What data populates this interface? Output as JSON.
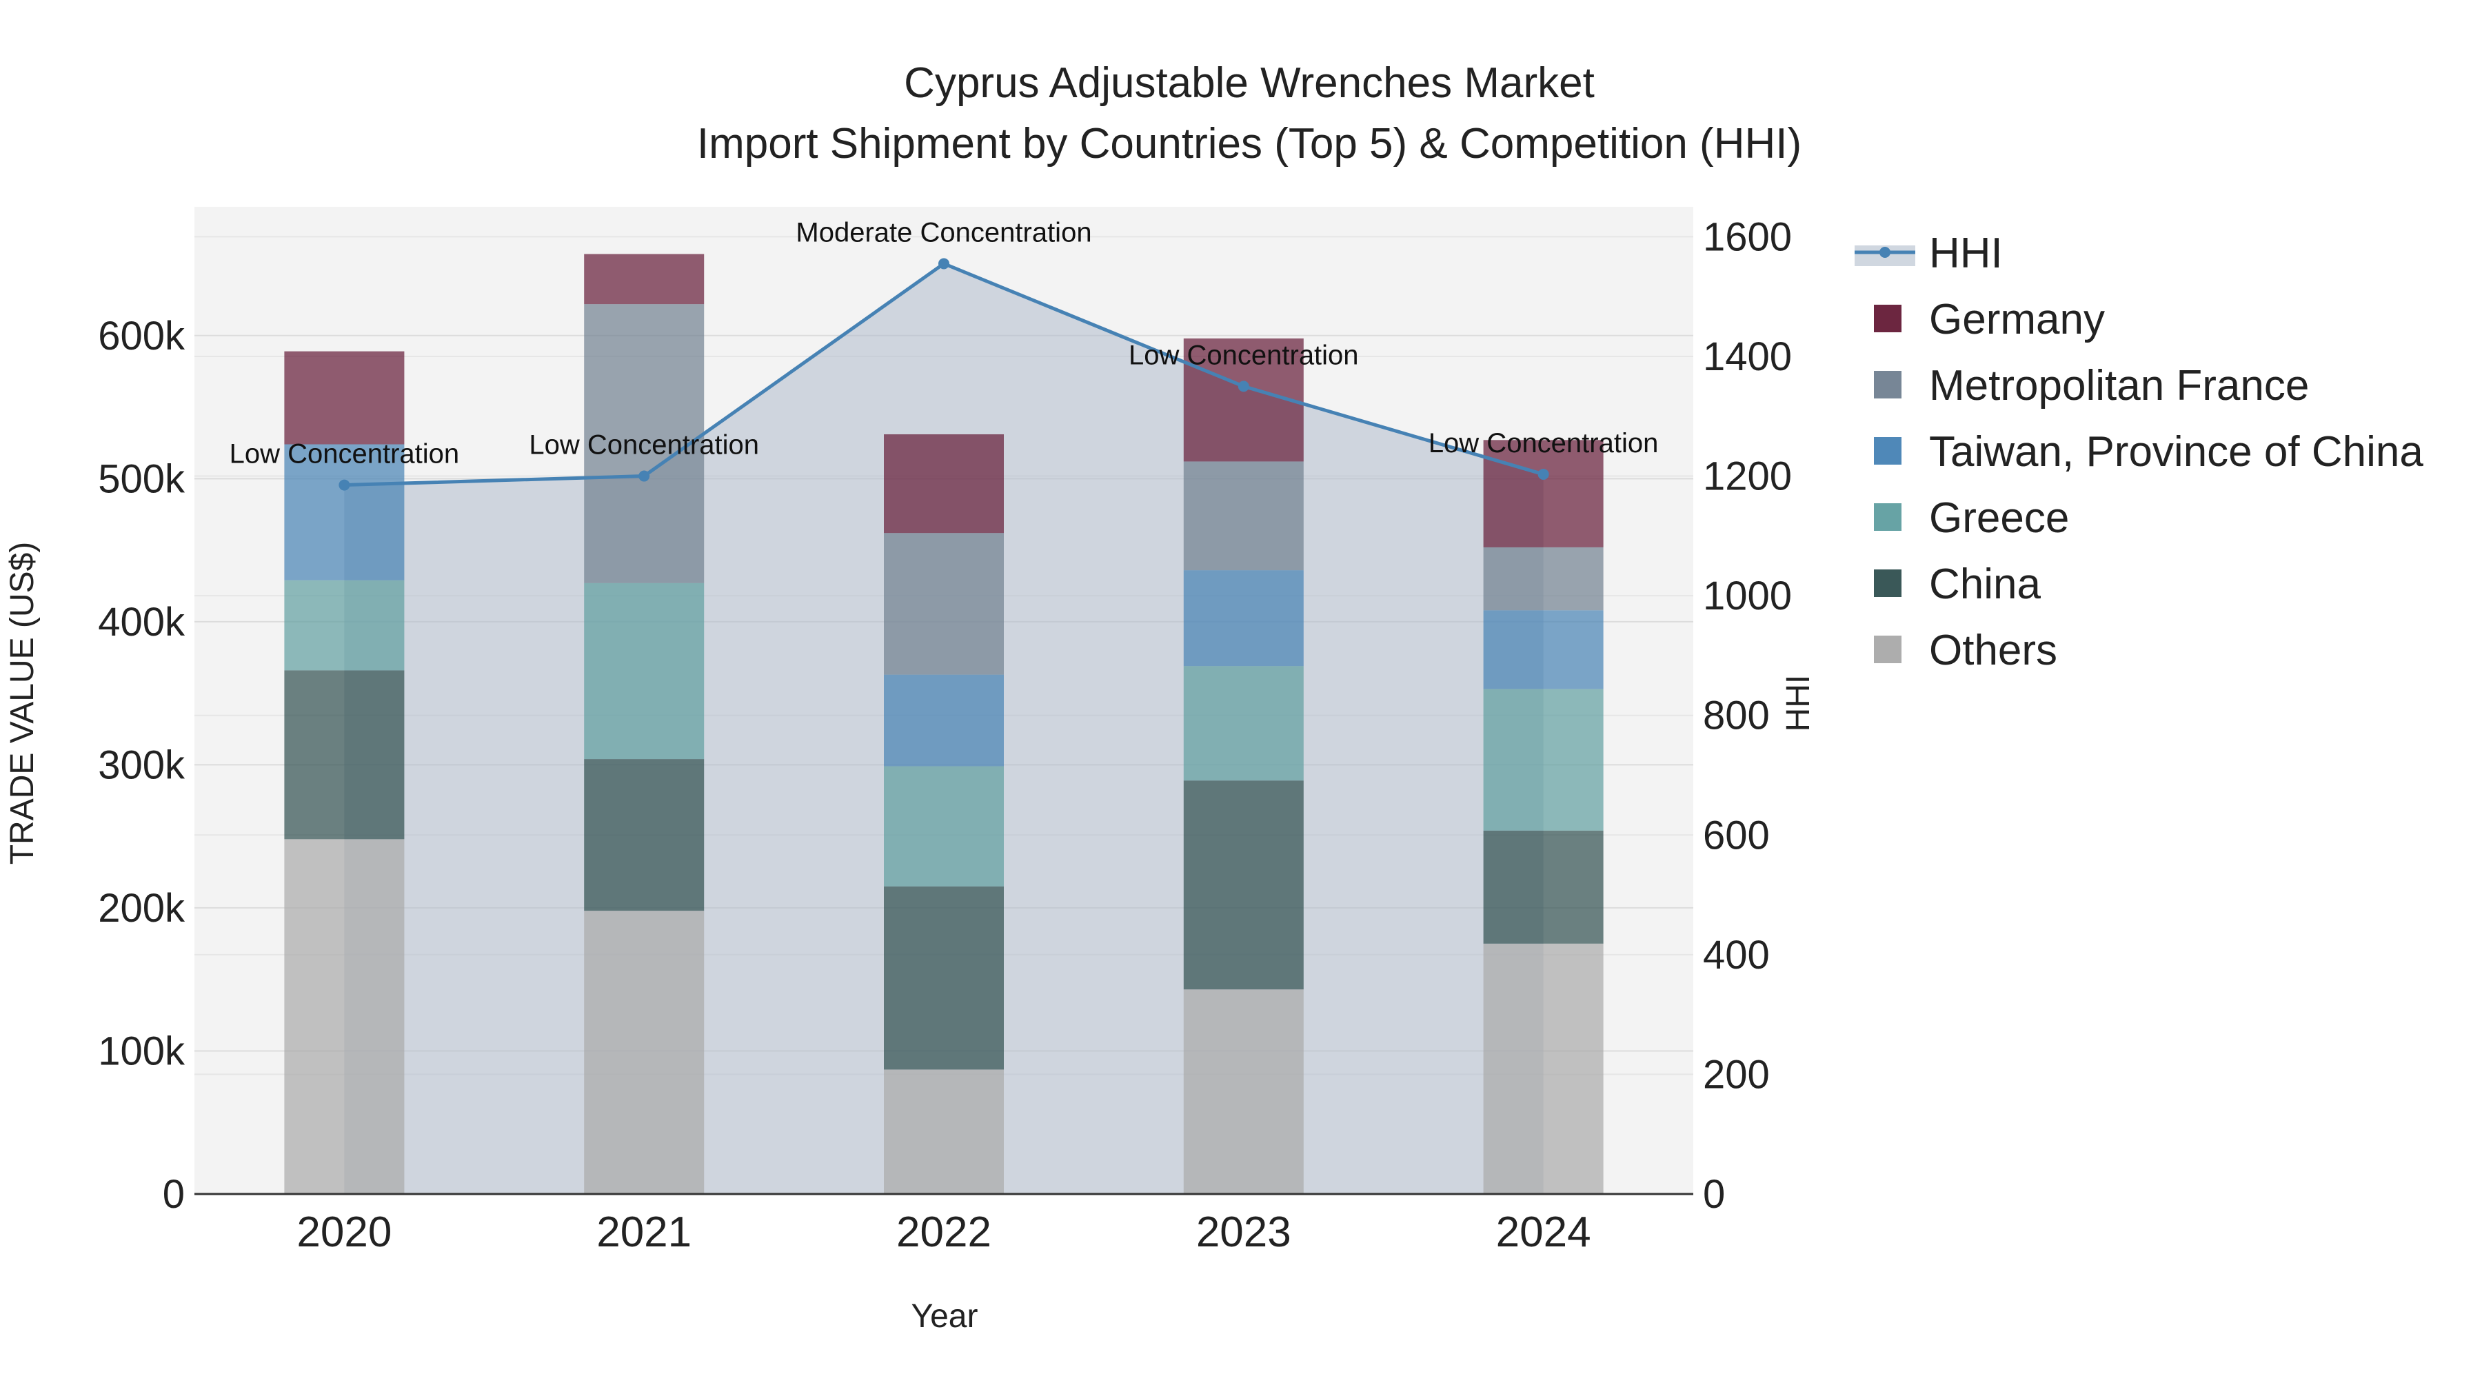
{
  "chart_data": {
    "type": "bar",
    "title_line1": "Cyprus Adjustable Wrenches Market",
    "title_line2": "Import Shipment by Countries (Top 5) & Competition (HHI)",
    "xlabel": "Year",
    "ylabel": "TRADE VALUE (US$)",
    "y2label": "HHI",
    "categories": [
      "2020",
      "2021",
      "2022",
      "2023",
      "2024"
    ],
    "ylim": [
      0,
      690000
    ],
    "y2lim": [
      0,
      1650
    ],
    "yticks": [
      0,
      100000,
      200000,
      300000,
      400000,
      500000,
      600000
    ],
    "yticklabels": [
      "0",
      "100k",
      "200k",
      "300k",
      "400k",
      "500k",
      "600k"
    ],
    "y2ticks": [
      0,
      200,
      400,
      600,
      800,
      1000,
      1200,
      1400,
      1600
    ],
    "y2ticklabels": [
      "0",
      "200",
      "400",
      "600",
      "800",
      "1000",
      "1200",
      "1400",
      "1600"
    ],
    "series": [
      {
        "name": "Others",
        "color": "#a9a9a9",
        "values": [
          248000,
          198000,
          87000,
          143000,
          175000
        ]
      },
      {
        "name": "China",
        "color": "#2f4f4f",
        "values": [
          118000,
          106000,
          128000,
          146000,
          79000
        ]
      },
      {
        "name": "Greece",
        "color": "#5f9ea0",
        "values": [
          63000,
          123000,
          84000,
          80000,
          99000
        ]
      },
      {
        "name": "Taiwan, Province of China",
        "color": "#4682b4",
        "values": [
          95000,
          0,
          64000,
          67000,
          55000
        ]
      },
      {
        "name": "Metropolitan France",
        "color": "#708090",
        "values": [
          0,
          195000,
          99000,
          76000,
          44000
        ]
      },
      {
        "name": "Germany",
        "color": "#641a36",
        "values": [
          65000,
          35000,
          69000,
          86000,
          75000
        ]
      }
    ],
    "hhi": {
      "name": "HHI",
      "color": "#4682b4",
      "values": [
        1185,
        1200,
        1555,
        1350,
        1203
      ],
      "labels": [
        "Low Concentration",
        "Low Concentration",
        "Moderate Concentration",
        "Low Concentration",
        "Low Concentration"
      ]
    },
    "legend_order": [
      "HHI",
      "Germany",
      "Metropolitan France",
      "Taiwan, Province of China",
      "Greece",
      "China",
      "Others"
    ]
  }
}
